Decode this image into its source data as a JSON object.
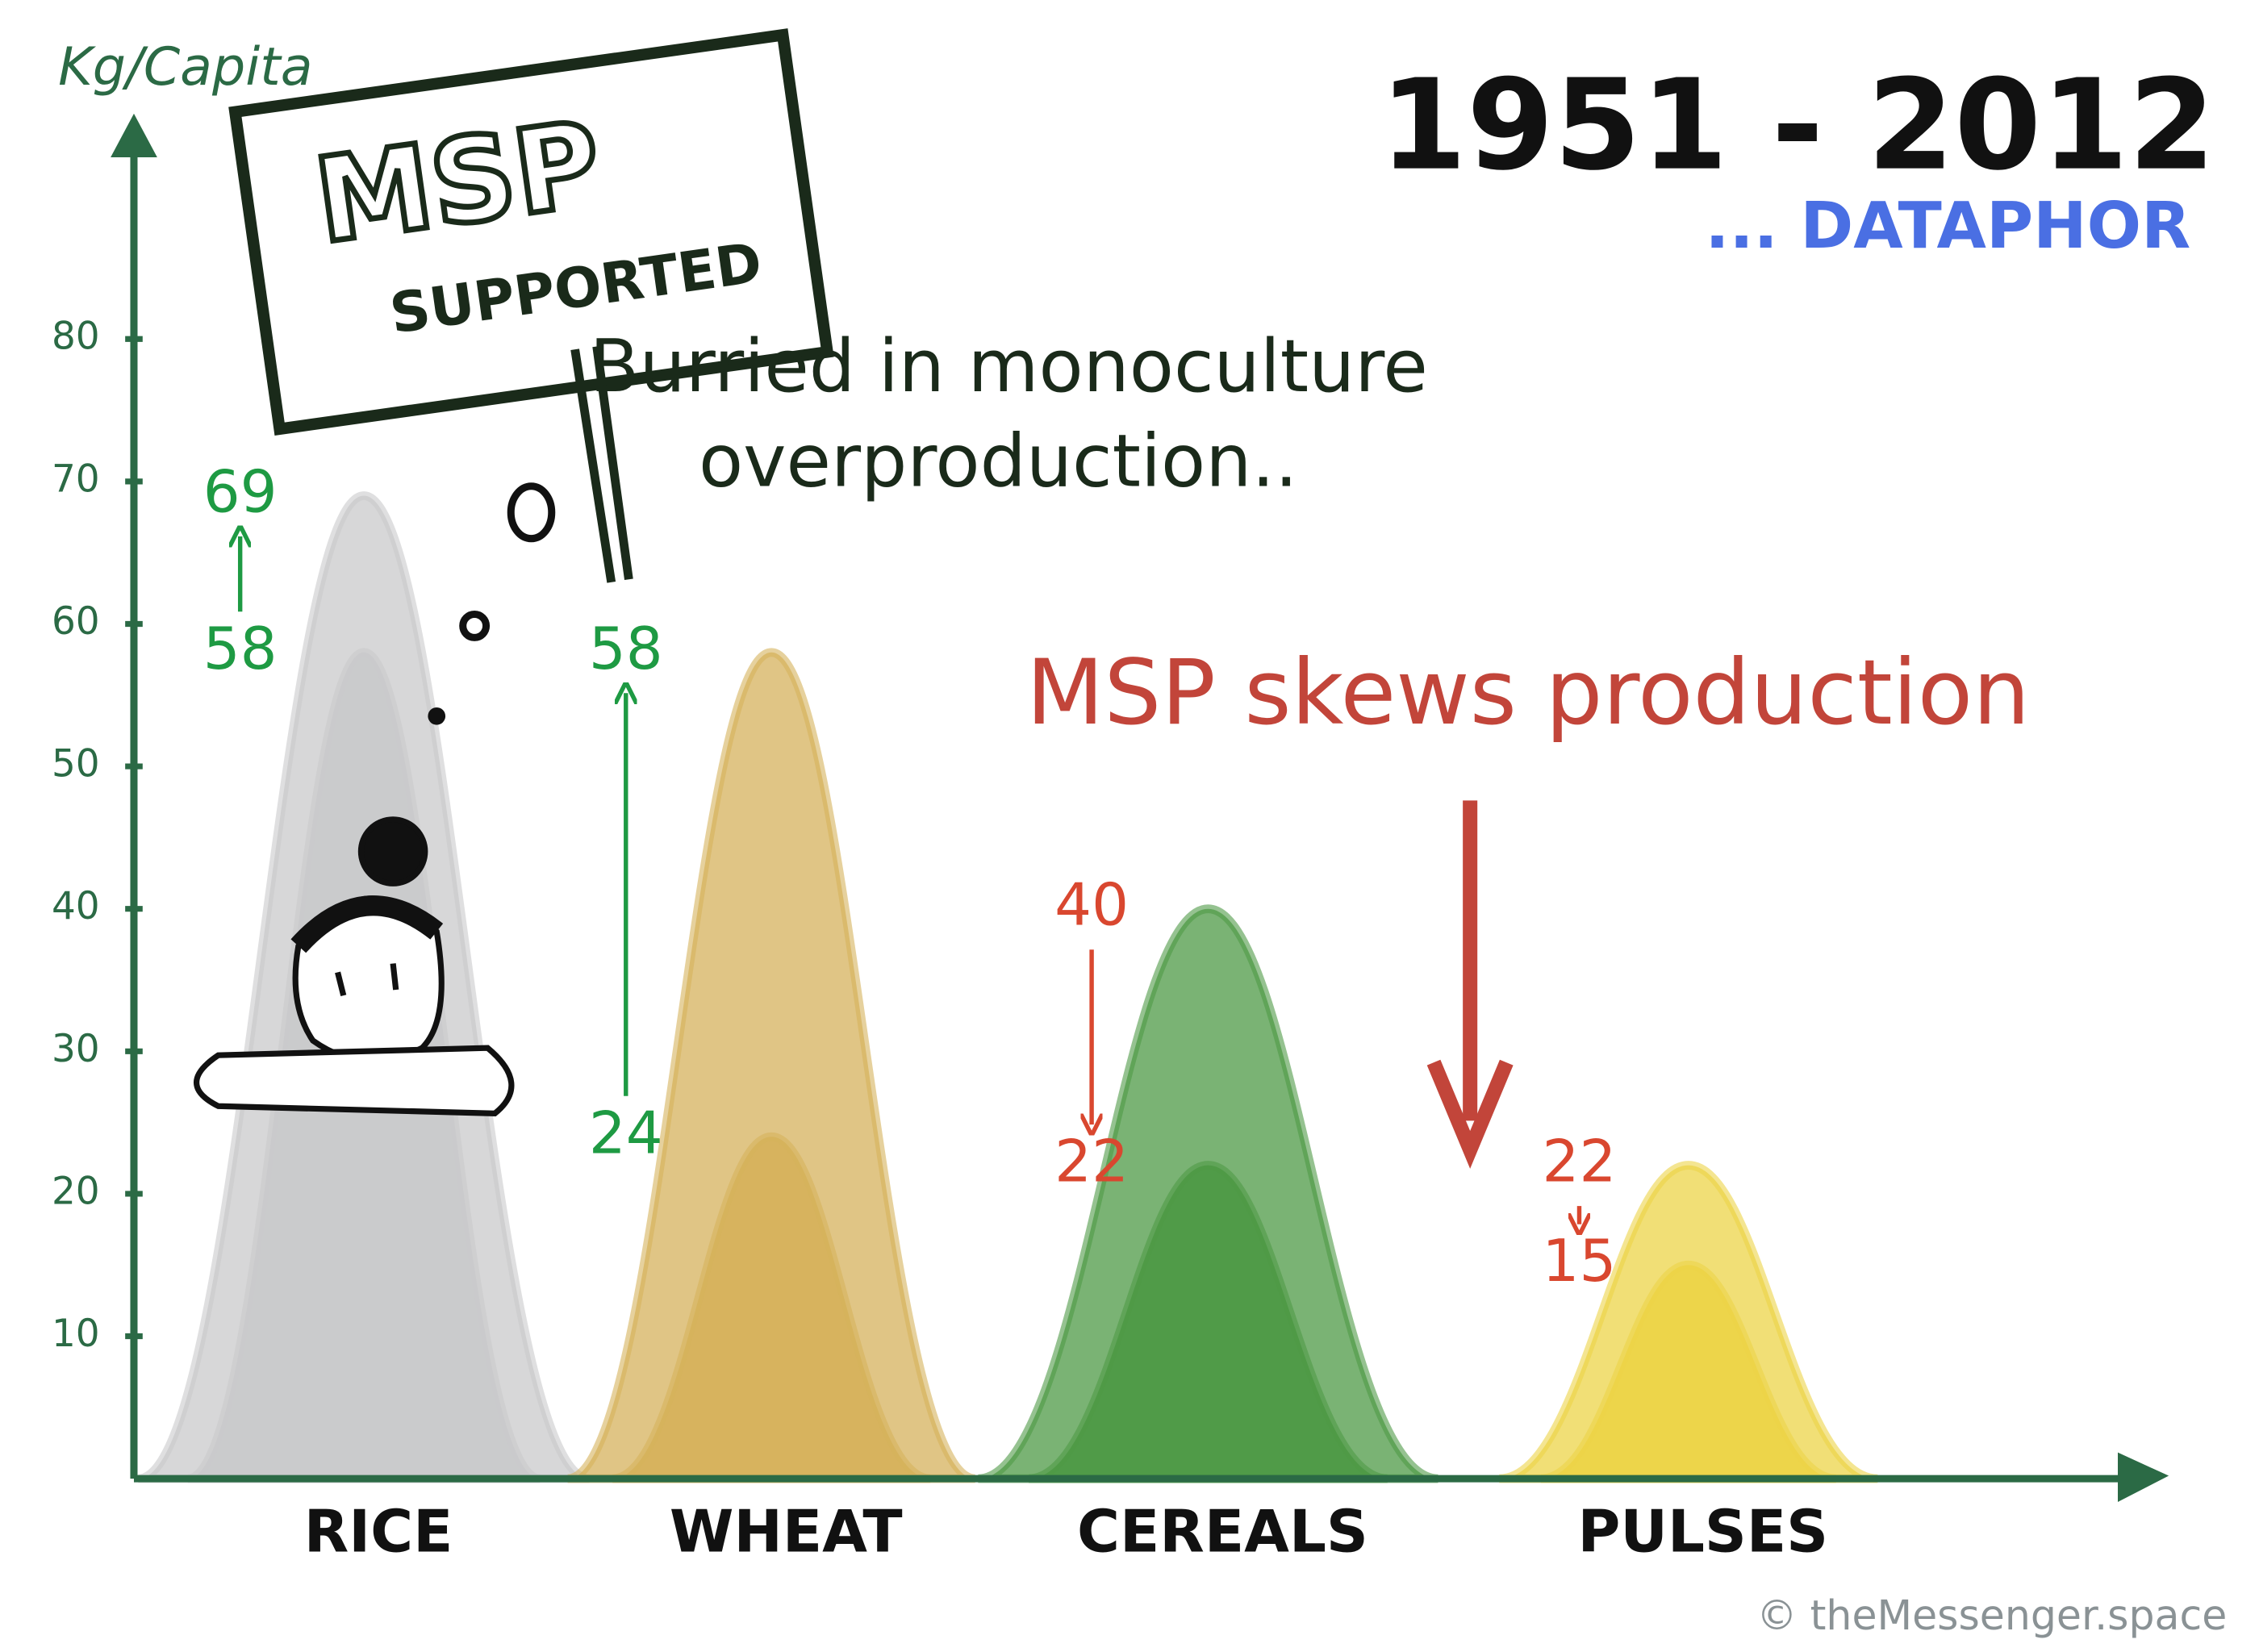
{
  "chart_data": {
    "type": "mound",
    "title": "1951 - 2012",
    "subtitle": "... DATAPHOR",
    "y_label": "Kg/Capita",
    "categories": [
      "RICE",
      "WHEAT",
      "CEREALS",
      "PULSES"
    ],
    "series": [
      {
        "values": [
          58,
          24,
          40,
          22
        ]
      },
      {
        "values": [
          69,
          58,
          22,
          15
        ]
      }
    ],
    "colors": [
      "#c9cacb",
      "#d6b25c",
      "#4e9a46",
      "#ecd448"
    ],
    "label_colors": [
      "#1e9a43",
      "#1e9a43",
      "#d9472f",
      "#d9472f"
    ],
    "ylim": [
      0,
      95
    ],
    "yticks": [
      10,
      20,
      30,
      40,
      50,
      60,
      70,
      80
    ],
    "sign": [
      "MSP",
      "SUPPORTED"
    ],
    "annotations": [
      "Burried in monoculture",
      "overproduction..",
      "MSP skews production"
    ],
    "credit": "© theMessenger.space"
  }
}
